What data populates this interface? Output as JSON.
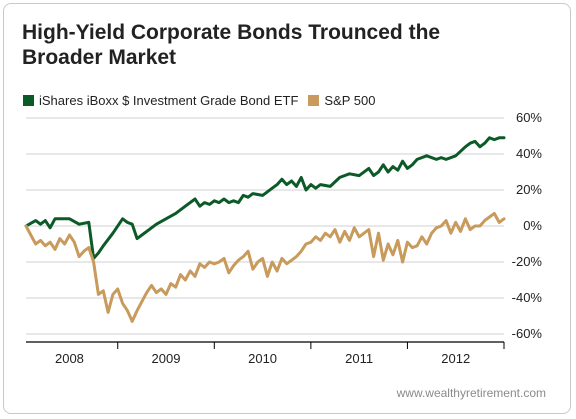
{
  "title": "High-Yield Corporate Bonds Trounced the Broader Market",
  "footer": "www.wealthyretirement.com",
  "colors": {
    "series1": "#0b5a27",
    "series2": "#c89a5b",
    "grid": "#d0d0d0",
    "axis": "#000000"
  },
  "chart_data": {
    "type": "line",
    "title": "High-Yield Corporate Bonds Trounced the Broader Market",
    "xlabel": "",
    "ylabel": "",
    "xlim": [
      2007.55,
      2012.5
    ],
    "ylim": [
      -65,
      65
    ],
    "x_ticks": [
      2008,
      2009,
      2010,
      2011,
      2012
    ],
    "x_tick_labels": [
      "2008",
      "2009",
      "2010",
      "2011",
      "2012"
    ],
    "y_ticks": [
      60,
      40,
      20,
      0,
      -20,
      -40,
      -60
    ],
    "y_tick_labels": [
      "60%",
      "40%",
      "20%",
      "0%",
      "-20%",
      "-40%",
      "-60%"
    ],
    "grid": "horizontal",
    "legend_position": "top-left",
    "series": [
      {
        "name": "iShares iBoxx $ Investment Grade Bond ETF",
        "color": "#0b5a27",
        "x": [
          2007.55,
          2007.65,
          2007.7,
          2007.75,
          2007.8,
          2007.85,
          2007.9,
          2008.0,
          2008.1,
          2008.2,
          2008.25,
          2008.3,
          2008.35,
          2008.45,
          2008.55,
          2008.6,
          2008.65,
          2008.7,
          2008.75,
          2008.8,
          2008.9,
          2009.0,
          2009.1,
          2009.2,
          2009.3,
          2009.35,
          2009.4,
          2009.45,
          2009.5,
          2009.55,
          2009.6,
          2009.65,
          2009.7,
          2009.75,
          2009.8,
          2009.85,
          2009.9,
          2010.0,
          2010.1,
          2010.15,
          2010.2,
          2010.25,
          2010.3,
          2010.35,
          2010.4,
          2010.45,
          2010.5,
          2010.55,
          2010.6,
          2010.7,
          2010.8,
          2010.9,
          2011.0,
          2011.1,
          2011.15,
          2011.2,
          2011.25,
          2011.3,
          2011.35,
          2011.4,
          2011.45,
          2011.5,
          2011.55,
          2011.6,
          2011.7,
          2011.8,
          2011.85,
          2011.9,
          2012.0,
          2012.1,
          2012.15,
          2012.2,
          2012.25,
          2012.3,
          2012.35,
          2012.4,
          2012.45,
          2012.5
        ],
        "y": [
          0,
          3,
          1,
          3,
          -1,
          4,
          4,
          4,
          1,
          2,
          -18,
          -15,
          -11,
          -4,
          4,
          2,
          1,
          -7,
          -5,
          -3,
          1,
          4,
          7,
          11,
          15,
          11,
          13,
          12,
          14,
          13,
          15,
          13,
          14,
          13,
          17,
          16,
          18,
          17,
          21,
          23,
          26,
          23,
          25,
          22,
          27,
          20,
          23,
          21,
          23,
          22,
          27,
          29,
          28,
          32,
          28,
          30,
          34,
          30,
          33,
          31,
          36,
          32,
          34,
          37,
          39,
          37,
          38,
          37,
          39,
          44,
          46,
          47,
          44,
          46,
          49,
          48,
          49,
          49
        ]
      },
      {
        "name": "S&P 500",
        "color": "#c89a5b",
        "x": [
          2007.55,
          2007.6,
          2007.65,
          2007.7,
          2007.75,
          2007.8,
          2007.85,
          2007.9,
          2007.95,
          2008.0,
          2008.05,
          2008.1,
          2008.15,
          2008.2,
          2008.25,
          2008.3,
          2008.35,
          2008.4,
          2008.45,
          2008.5,
          2008.55,
          2008.6,
          2008.65,
          2008.7,
          2008.75,
          2008.8,
          2008.85,
          2008.9,
          2008.95,
          2009.0,
          2009.05,
          2009.1,
          2009.15,
          2009.2,
          2009.25,
          2009.3,
          2009.35,
          2009.4,
          2009.45,
          2009.5,
          2009.55,
          2009.6,
          2009.65,
          2009.7,
          2009.75,
          2009.8,
          2009.85,
          2009.9,
          2009.95,
          2010.0,
          2010.05,
          2010.1,
          2010.15,
          2010.2,
          2010.25,
          2010.3,
          2010.35,
          2010.4,
          2010.45,
          2010.5,
          2010.55,
          2010.6,
          2010.65,
          2010.7,
          2010.75,
          2010.8,
          2010.85,
          2010.9,
          2010.95,
          2011.0,
          2011.05,
          2011.1,
          2011.15,
          2011.2,
          2011.25,
          2011.3,
          2011.35,
          2011.4,
          2011.45,
          2011.5,
          2011.55,
          2011.6,
          2011.65,
          2011.7,
          2011.75,
          2011.8,
          2011.85,
          2011.9,
          2011.95,
          2012.0,
          2012.05,
          2012.1,
          2012.15,
          2012.2,
          2012.25,
          2012.3,
          2012.35,
          2012.4,
          2012.45,
          2012.5
        ],
        "y": [
          0,
          -5,
          -10,
          -8,
          -11,
          -9,
          -13,
          -7,
          -10,
          -5,
          -9,
          -17,
          -14,
          -12,
          -20,
          -38,
          -36,
          -48,
          -38,
          -35,
          -43,
          -47,
          -53,
          -47,
          -42,
          -37,
          -33,
          -37,
          -35,
          -38,
          -32,
          -34,
          -27,
          -30,
          -25,
          -28,
          -21,
          -23,
          -20,
          -21,
          -20,
          -18,
          -26,
          -22,
          -19,
          -17,
          -14,
          -24,
          -20,
          -18,
          -28,
          -20,
          -25,
          -18,
          -21,
          -19,
          -17,
          -14,
          -10,
          -9,
          -6,
          -8,
          -4,
          -6,
          -2,
          -9,
          -3,
          -8,
          -1,
          -6,
          -4,
          -2,
          -17,
          -4,
          -19,
          -10,
          -16,
          -8,
          -20,
          -9,
          -12,
          -11,
          -6,
          -10,
          -4,
          -1,
          0,
          3,
          -4,
          2,
          -3,
          4,
          -2,
          0,
          0,
          3,
          5,
          7,
          2,
          4
        ]
      }
    ]
  }
}
